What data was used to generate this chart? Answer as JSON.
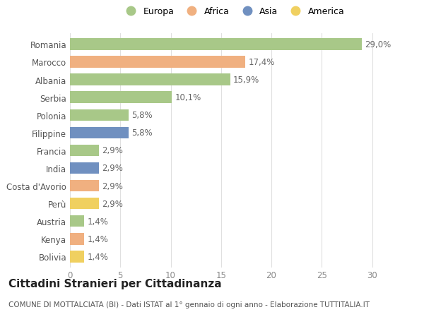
{
  "countries": [
    "Romania",
    "Marocco",
    "Albania",
    "Serbia",
    "Polonia",
    "Filippine",
    "Francia",
    "India",
    "Costa d'Avorio",
    "Perù",
    "Austria",
    "Kenya",
    "Bolivia"
  ],
  "values": [
    29.0,
    17.4,
    15.9,
    10.1,
    5.8,
    5.8,
    2.9,
    2.9,
    2.9,
    2.9,
    1.4,
    1.4,
    1.4
  ],
  "labels": [
    "29,0%",
    "17,4%",
    "15,9%",
    "10,1%",
    "5,8%",
    "5,8%",
    "2,9%",
    "2,9%",
    "2,9%",
    "2,9%",
    "1,4%",
    "1,4%",
    "1,4%"
  ],
  "continents": [
    "Europa",
    "Africa",
    "Europa",
    "Europa",
    "Europa",
    "Asia",
    "Europa",
    "Asia",
    "Africa",
    "America",
    "Europa",
    "Africa",
    "America"
  ],
  "colors": {
    "Europa": "#a8c888",
    "Africa": "#f0b080",
    "Asia": "#7090c0",
    "America": "#f0d060"
  },
  "legend_order": [
    "Europa",
    "Africa",
    "Asia",
    "America"
  ],
  "xlim": [
    0,
    32
  ],
  "xticks": [
    0,
    5,
    10,
    15,
    20,
    25,
    30
  ],
  "title": "Cittadini Stranieri per Cittadinanza",
  "subtitle": "COMUNE DI MOTTALCIATA (BI) - Dati ISTAT al 1° gennaio di ogni anno - Elaborazione TUTTITALIA.IT",
  "bg_color": "#ffffff",
  "grid_color": "#e0e0e0",
  "bar_height": 0.65,
  "label_fontsize": 8.5,
  "tick_fontsize": 8.5,
  "title_fontsize": 11,
  "subtitle_fontsize": 7.5
}
